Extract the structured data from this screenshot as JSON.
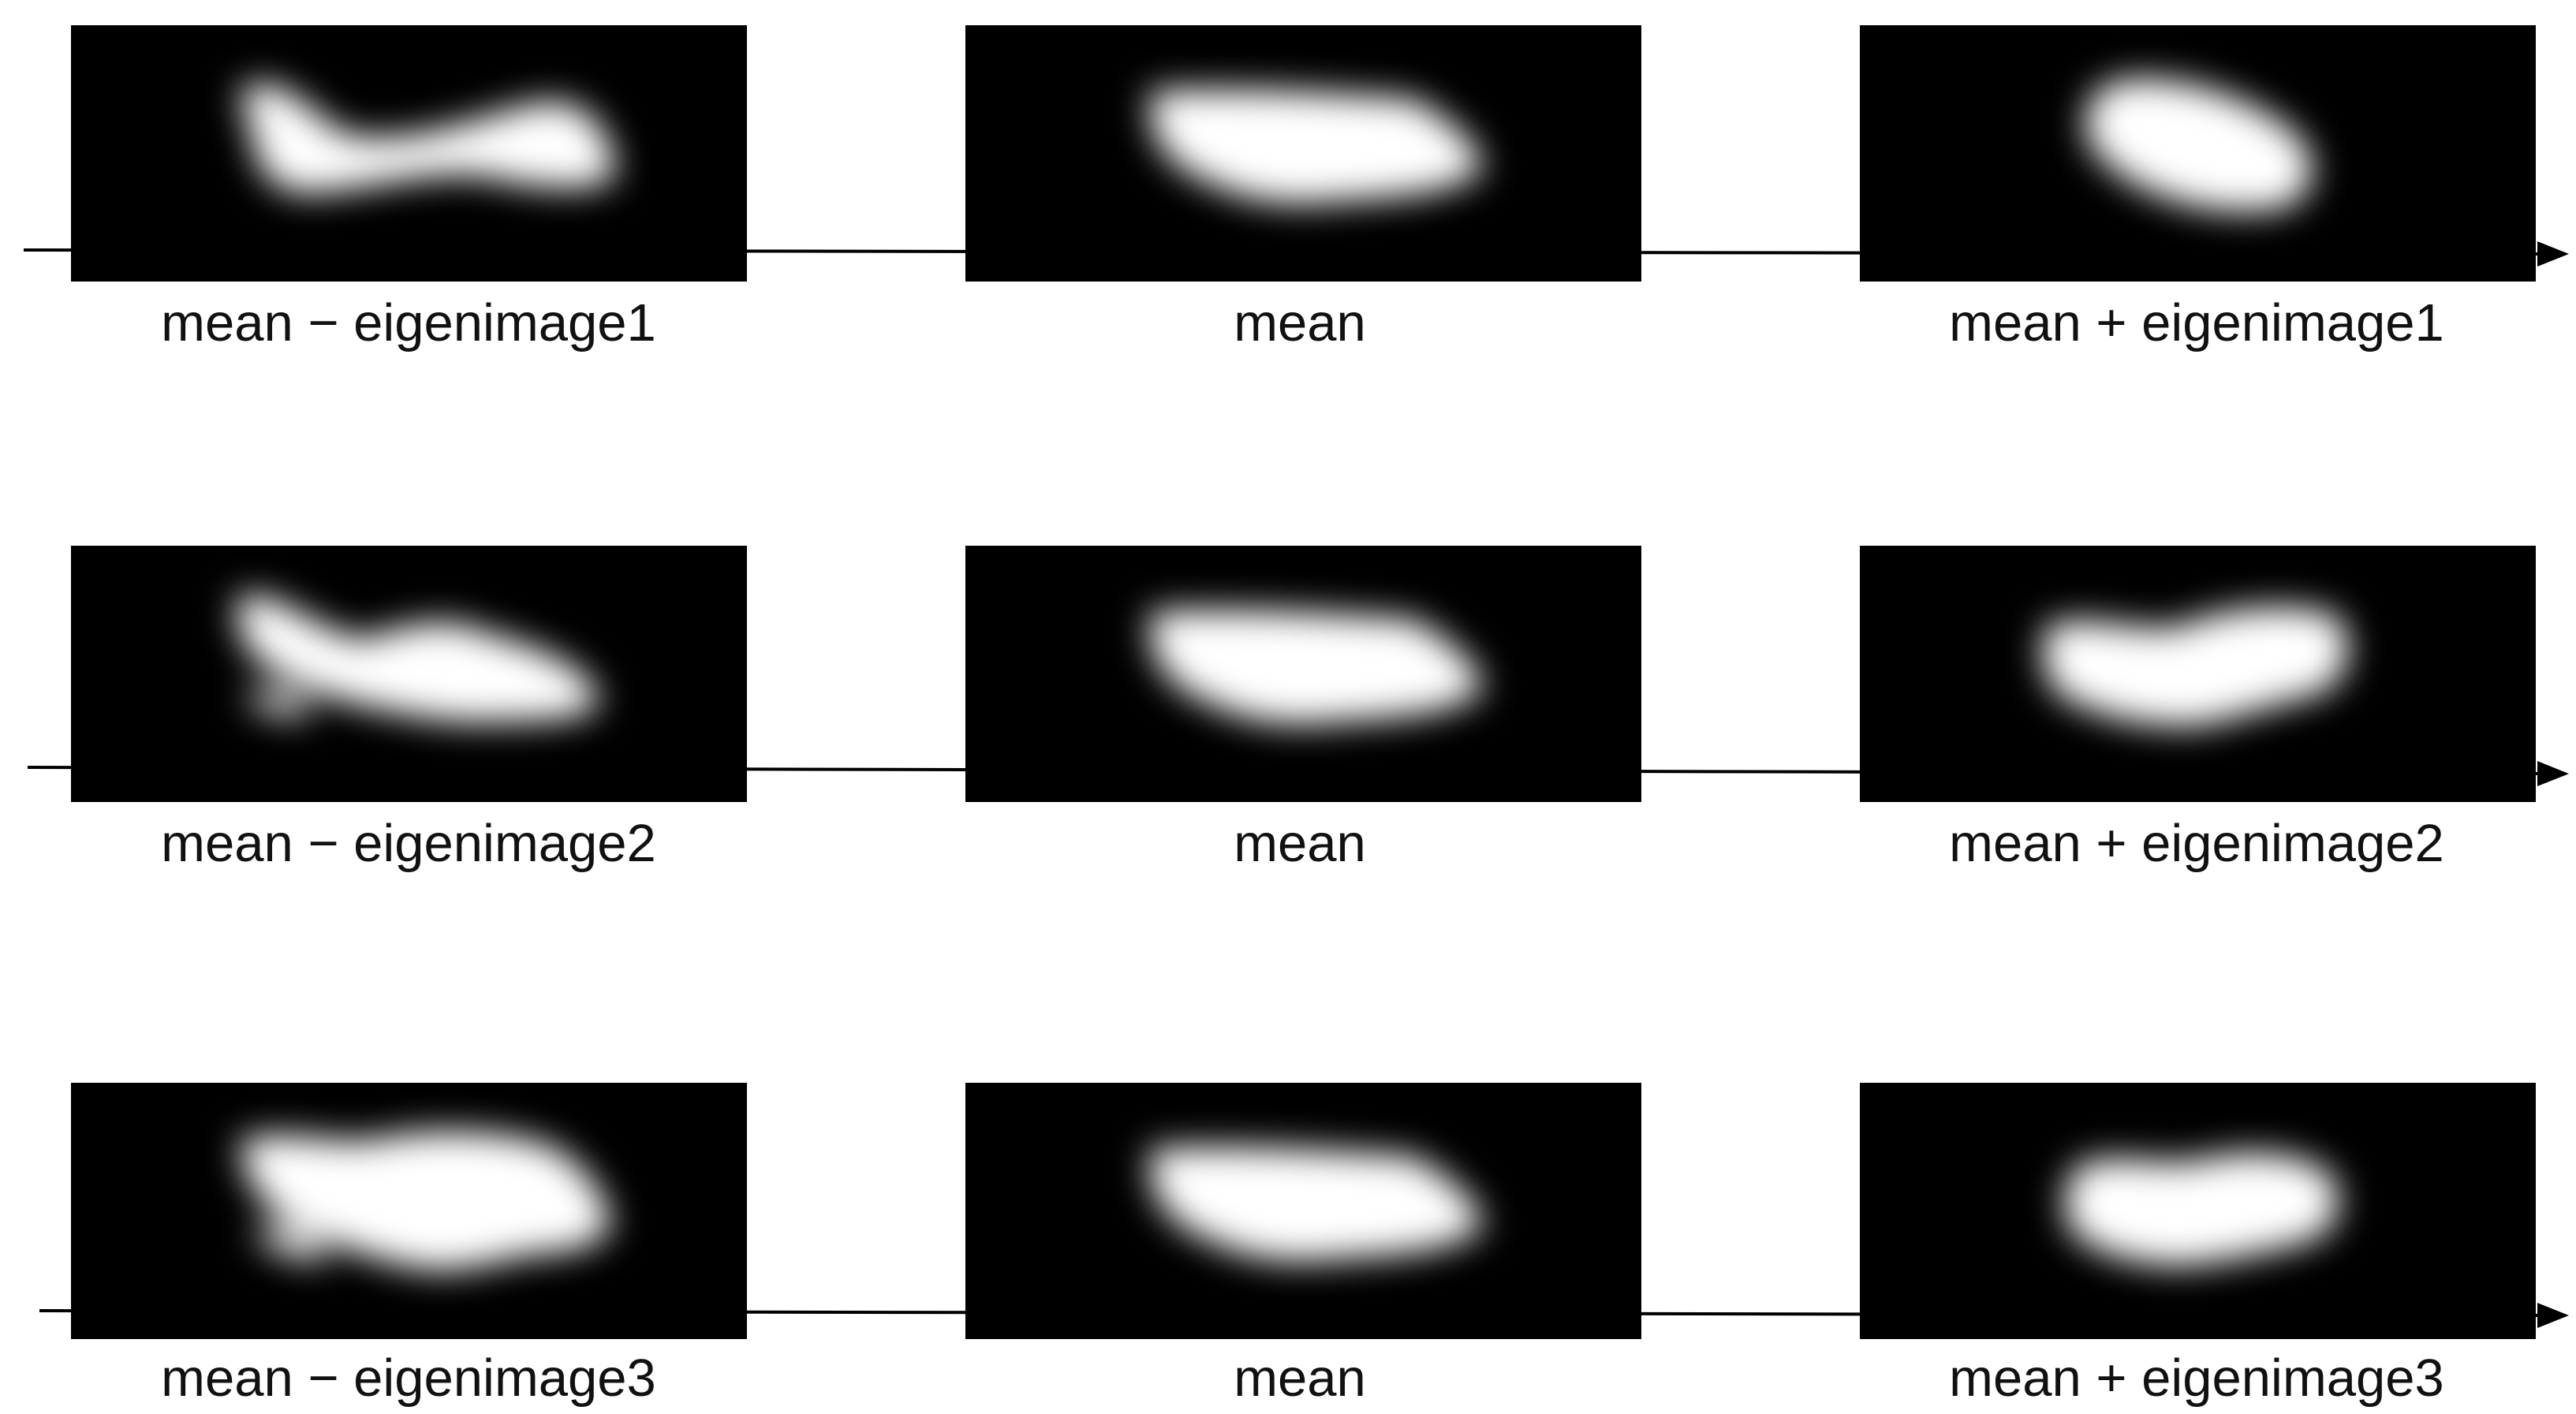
{
  "rows": [
    {
      "panels": [
        {
          "caption": "mean − eigenimage1"
        },
        {
          "caption": "mean"
        },
        {
          "caption": "mean + eigenimage1"
        }
      ]
    },
    {
      "panels": [
        {
          "caption": "mean − eigenimage2"
        },
        {
          "caption": "mean"
        },
        {
          "caption": "mean + eigenimage2"
        }
      ]
    },
    {
      "panels": [
        {
          "caption": "mean − eigenimage3"
        },
        {
          "caption": "mean"
        },
        {
          "caption": "mean + eigenimage3"
        }
      ]
    }
  ],
  "colors": {
    "panel_bg": "#000000",
    "blob": "#ffffff",
    "line": "#000000",
    "page": "#ffffff"
  }
}
